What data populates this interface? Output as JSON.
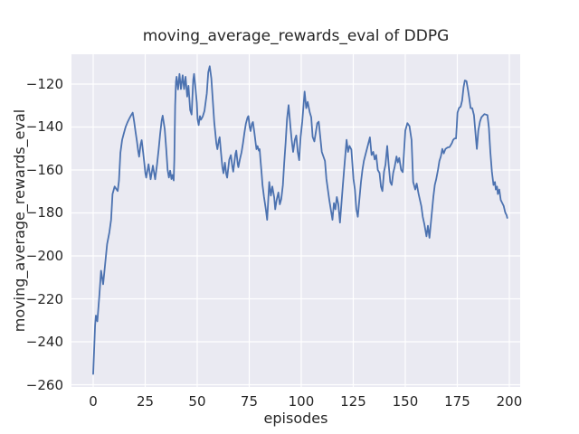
{
  "chart_data": {
    "type": "line",
    "title": "moving_average_rewards_eval of DDPG",
    "xlabel": "episodes",
    "ylabel": "moving_average_rewards_eval",
    "xlim": [
      -10.43,
      205.23
    ],
    "ylim": [
      -261.05,
      -106.11
    ],
    "grid": true,
    "legend_position": "none",
    "plot_background": "#EAEAF2",
    "grid_color": "#FFFFFF",
    "text_color": "#262626",
    "xticks": {
      "values": [
        0,
        25,
        50,
        75,
        100,
        125,
        150,
        175,
        200
      ],
      "labels": [
        "0",
        "25",
        "50",
        "75",
        "100",
        "125",
        "150",
        "175",
        "200"
      ]
    },
    "yticks": {
      "values": [
        -120,
        -140,
        -160,
        -180,
        -200,
        -220,
        -240,
        -260
      ],
      "labels": [
        "−120",
        "−140",
        "−160",
        "−180",
        "−200",
        "−220",
        "−240",
        "−260"
      ]
    },
    "series": [
      {
        "name": "moving_average_rewards_eval",
        "color": "#4C72B0",
        "points": [
          [
            0,
            -255.0
          ],
          [
            0.9,
            -232.4
          ],
          [
            1.3,
            -227.8
          ],
          [
            2.0,
            -230.5
          ],
          [
            3.0,
            -218.0
          ],
          [
            3.8,
            -206.9
          ],
          [
            4.8,
            -213.2
          ],
          [
            5.7,
            -204.3
          ],
          [
            6.7,
            -194.5
          ],
          [
            7.8,
            -189.0
          ],
          [
            8.6,
            -183.2
          ],
          [
            9.3,
            -171.2
          ],
          [
            10.3,
            -167.7
          ],
          [
            11.0,
            -168.7
          ],
          [
            11.8,
            -169.8
          ],
          [
            12.4,
            -165.0
          ],
          [
            13.1,
            -152.0
          ],
          [
            13.9,
            -146.0
          ],
          [
            14.8,
            -142.8
          ],
          [
            15.6,
            -139.9
          ],
          [
            16.5,
            -137.8
          ],
          [
            17.4,
            -136.0
          ],
          [
            18.2,
            -134.6
          ],
          [
            19.0,
            -133.3
          ],
          [
            19.7,
            -137.5
          ],
          [
            20.4,
            -142.5
          ],
          [
            21.0,
            -146.5
          ],
          [
            21.7,
            -151.7
          ],
          [
            22.1,
            -153.8
          ],
          [
            22.8,
            -148.2
          ],
          [
            23.3,
            -146.1
          ],
          [
            24.0,
            -151.7
          ],
          [
            24.5,
            -155.9
          ],
          [
            25.1,
            -161.5
          ],
          [
            25.5,
            -163.6
          ],
          [
            26.6,
            -157.3
          ],
          [
            27.6,
            -164.3
          ],
          [
            28.7,
            -158.0
          ],
          [
            29.8,
            -164.3
          ],
          [
            30.7,
            -157.3
          ],
          [
            31.5,
            -150.3
          ],
          [
            32.2,
            -143.3
          ],
          [
            32.9,
            -137.0
          ],
          [
            33.4,
            -134.7
          ],
          [
            34.4,
            -141.0
          ],
          [
            35.1,
            -150.0
          ],
          [
            35.8,
            -160.0
          ],
          [
            36.4,
            -163.5
          ],
          [
            37.0,
            -160.3
          ],
          [
            37.6,
            -164.2
          ],
          [
            38.1,
            -162.3
          ],
          [
            38.7,
            -164.9
          ],
          [
            39.0,
            -155.0
          ],
          [
            39.4,
            -130.0
          ],
          [
            39.8,
            -119.0
          ],
          [
            40.1,
            -116.6
          ],
          [
            40.8,
            -122.5
          ],
          [
            41.5,
            -115.3
          ],
          [
            42.2,
            -122.3
          ],
          [
            43.0,
            -115.9
          ],
          [
            43.7,
            -122.3
          ],
          [
            44.4,
            -116.6
          ],
          [
            45.2,
            -125.8
          ],
          [
            45.8,
            -120.8
          ],
          [
            46.6,
            -132.1
          ],
          [
            47.3,
            -134.2
          ],
          [
            48.1,
            -118.0
          ],
          [
            48.5,
            -115.3
          ],
          [
            49.2,
            -121.9
          ],
          [
            49.8,
            -128.6
          ],
          [
            50.2,
            -136.3
          ],
          [
            50.7,
            -139.1
          ],
          [
            51.3,
            -134.9
          ],
          [
            51.8,
            -136.6
          ],
          [
            52.6,
            -135.2
          ],
          [
            53.5,
            -132.5
          ],
          [
            54.6,
            -124.3
          ],
          [
            55.3,
            -114.5
          ],
          [
            56.0,
            -111.7
          ],
          [
            56.8,
            -117.3
          ],
          [
            57.5,
            -127.5
          ],
          [
            58.2,
            -137.7
          ],
          [
            58.6,
            -141.9
          ],
          [
            59.2,
            -147.5
          ],
          [
            59.7,
            -150.3
          ],
          [
            60.4,
            -146.1
          ],
          [
            60.8,
            -144.7
          ],
          [
            61.5,
            -152.4
          ],
          [
            62.1,
            -158.7
          ],
          [
            62.6,
            -161.5
          ],
          [
            63.3,
            -156.6
          ],
          [
            64.0,
            -162.2
          ],
          [
            64.4,
            -163.6
          ],
          [
            65.4,
            -155.2
          ],
          [
            66.2,
            -153.1
          ],
          [
            66.9,
            -158.7
          ],
          [
            67.3,
            -160.8
          ],
          [
            68.4,
            -152.4
          ],
          [
            68.8,
            -151.0
          ],
          [
            69.5,
            -157.3
          ],
          [
            69.8,
            -158.7
          ],
          [
            70.5,
            -155.2
          ],
          [
            71.3,
            -151.7
          ],
          [
            72.0,
            -147.5
          ],
          [
            72.7,
            -142.6
          ],
          [
            73.4,
            -138.4
          ],
          [
            74.2,
            -135.6
          ],
          [
            74.6,
            -134.9
          ],
          [
            75.2,
            -139.8
          ],
          [
            75.6,
            -141.9
          ],
          [
            76.3,
            -138.4
          ],
          [
            76.8,
            -137.7
          ],
          [
            77.5,
            -142.6
          ],
          [
            78.1,
            -147.5
          ],
          [
            78.5,
            -150.3
          ],
          [
            79.0,
            -148.9
          ],
          [
            79.6,
            -151.0
          ],
          [
            80.0,
            -150.3
          ],
          [
            80.4,
            -155.2
          ],
          [
            81.0,
            -162.2
          ],
          [
            81.4,
            -167.1
          ],
          [
            82.1,
            -172.5
          ],
          [
            83.0,
            -178.5
          ],
          [
            83.6,
            -183.2
          ],
          [
            84.6,
            -165.6
          ],
          [
            85.4,
            -171.9
          ],
          [
            86.1,
            -167.7
          ],
          [
            87.0,
            -172.8
          ],
          [
            87.5,
            -178.3
          ],
          [
            88.2,
            -174.0
          ],
          [
            89.0,
            -170.5
          ],
          [
            89.7,
            -176.0
          ],
          [
            90.4,
            -173.5
          ],
          [
            91.2,
            -167.0
          ],
          [
            91.8,
            -157.0
          ],
          [
            92.5,
            -147.4
          ],
          [
            93.2,
            -136.1
          ],
          [
            93.9,
            -129.8
          ],
          [
            94.9,
            -141.0
          ],
          [
            95.4,
            -146.0
          ],
          [
            96.1,
            -151.6
          ],
          [
            96.9,
            -146.0
          ],
          [
            97.6,
            -143.9
          ],
          [
            98.3,
            -151.5
          ],
          [
            99.0,
            -155.4
          ],
          [
            99.7,
            -144.6
          ],
          [
            100.5,
            -137.5
          ],
          [
            101.6,
            -123.5
          ],
          [
            102.4,
            -131.2
          ],
          [
            103.1,
            -128.3
          ],
          [
            104.1,
            -133.2
          ],
          [
            104.8,
            -135.4
          ],
          [
            105.5,
            -144.6
          ],
          [
            106.3,
            -146.7
          ],
          [
            107.7,
            -138.2
          ],
          [
            108.4,
            -137.5
          ],
          [
            109.9,
            -151.6
          ],
          [
            111.4,
            -155.8
          ],
          [
            112.1,
            -164.2
          ],
          [
            113.5,
            -174.0
          ],
          [
            115.0,
            -183.2
          ],
          [
            115.7,
            -175.4
          ],
          [
            116.4,
            -178.3
          ],
          [
            117.1,
            -172.6
          ],
          [
            117.8,
            -175.8
          ],
          [
            118.6,
            -184.5
          ],
          [
            120.0,
            -167.0
          ],
          [
            120.7,
            -158.6
          ],
          [
            121.8,
            -146.0
          ],
          [
            122.5,
            -151.6
          ],
          [
            123.2,
            -148.8
          ],
          [
            124.1,
            -150.5
          ],
          [
            125.1,
            -164.2
          ],
          [
            125.8,
            -169.1
          ],
          [
            126.5,
            -178.3
          ],
          [
            127.2,
            -181.8
          ],
          [
            128.7,
            -165.6
          ],
          [
            129.4,
            -160.0
          ],
          [
            130.1,
            -155.8
          ],
          [
            131.1,
            -152.0
          ],
          [
            132.3,
            -147.4
          ],
          [
            133.0,
            -144.8
          ],
          [
            133.8,
            -153.0
          ],
          [
            134.6,
            -151.6
          ],
          [
            135.3,
            -155.1
          ],
          [
            136.0,
            -153.0
          ],
          [
            136.8,
            -160.0
          ],
          [
            137.6,
            -161.4
          ],
          [
            138.3,
            -167.7
          ],
          [
            139.0,
            -169.8
          ],
          [
            139.8,
            -160.7
          ],
          [
            140.5,
            -157.5
          ],
          [
            141.3,
            -148.8
          ],
          [
            142.0,
            -157.5
          ],
          [
            142.8,
            -165.6
          ],
          [
            143.5,
            -167.0
          ],
          [
            144.2,
            -161.4
          ],
          [
            144.9,
            -158.6
          ],
          [
            145.8,
            -153.7
          ],
          [
            146.4,
            -156.5
          ],
          [
            147.1,
            -154.4
          ],
          [
            148.0,
            -160.0
          ],
          [
            148.8,
            -161.0
          ],
          [
            149.4,
            -151.6
          ],
          [
            150.0,
            -141.7
          ],
          [
            151.0,
            -138.2
          ],
          [
            152.0,
            -139.6
          ],
          [
            153.0,
            -146.0
          ],
          [
            153.8,
            -165.6
          ],
          [
            154.8,
            -169.1
          ],
          [
            155.5,
            -166.3
          ],
          [
            156.4,
            -171.2
          ],
          [
            157.7,
            -176.8
          ],
          [
            158.4,
            -181.8
          ],
          [
            159.2,
            -185.3
          ],
          [
            160.2,
            -190.9
          ],
          [
            160.9,
            -186.0
          ],
          [
            161.6,
            -191.6
          ],
          [
            162.8,
            -179.7
          ],
          [
            163.5,
            -172.6
          ],
          [
            164.2,
            -167.0
          ],
          [
            164.9,
            -164.2
          ],
          [
            165.7,
            -160.0
          ],
          [
            166.4,
            -155.8
          ],
          [
            167.1,
            -153.7
          ],
          [
            167.8,
            -150.2
          ],
          [
            168.5,
            -152.3
          ],
          [
            169.3,
            -150.2
          ],
          [
            170.3,
            -149.5
          ],
          [
            171.3,
            -149.3
          ],
          [
            172.4,
            -147.5
          ],
          [
            173.0,
            -146.0
          ],
          [
            173.7,
            -145.3
          ],
          [
            174.4,
            -145.3
          ],
          [
            175.1,
            -133.3
          ],
          [
            175.8,
            -131.2
          ],
          [
            176.6,
            -130.5
          ],
          [
            177.3,
            -127.7
          ],
          [
            178.0,
            -121.5
          ],
          [
            178.6,
            -118.3
          ],
          [
            179.4,
            -118.6
          ],
          [
            180.1,
            -122.5
          ],
          [
            180.7,
            -126.3
          ],
          [
            181.4,
            -131.2
          ],
          [
            182.2,
            -131.2
          ],
          [
            183.0,
            -134.5
          ],
          [
            183.4,
            -138.9
          ],
          [
            184.0,
            -146.0
          ],
          [
            184.4,
            -150.2
          ],
          [
            185.1,
            -141.7
          ],
          [
            185.9,
            -137.5
          ],
          [
            186.6,
            -135.4
          ],
          [
            188.0,
            -134.0
          ],
          [
            188.7,
            -134.2
          ],
          [
            189.5,
            -134.5
          ],
          [
            190.2,
            -140.3
          ],
          [
            190.9,
            -151.6
          ],
          [
            191.6,
            -160.7
          ],
          [
            192.4,
            -167.0
          ],
          [
            193.1,
            -165.6
          ],
          [
            193.5,
            -169.1
          ],
          [
            194.1,
            -167.7
          ],
          [
            194.5,
            -171.2
          ],
          [
            195.2,
            -169.1
          ],
          [
            195.9,
            -174.0
          ],
          [
            196.6,
            -175.4
          ],
          [
            197.3,
            -176.8
          ],
          [
            198.0,
            -179.7
          ],
          [
            198.7,
            -181.1
          ],
          [
            199.0,
            -182.3
          ]
        ]
      }
    ]
  }
}
